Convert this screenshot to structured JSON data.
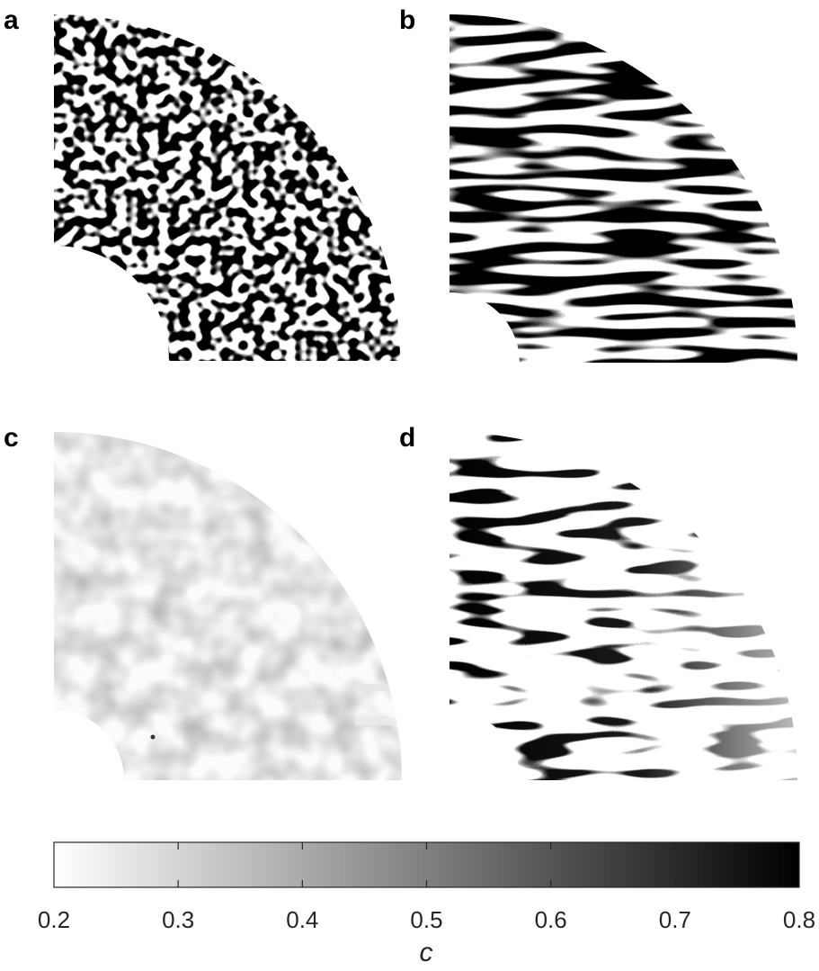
{
  "chart_data": {
    "type": "heatmap",
    "panels": [
      {
        "label": "a",
        "pattern": "fine isotropic labyrinth, stripes toward outer rim"
      },
      {
        "label": "b",
        "pattern": "elongated horizontal stripes"
      },
      {
        "label": "c",
        "pattern": "nearly uniform light field"
      },
      {
        "label": "d",
        "pattern": "thin horizontal stripes, fading toward right"
      }
    ],
    "colorbar": {
      "label": "c",
      "min": 0.2,
      "max": 0.8,
      "ticks": [
        0.2,
        0.3,
        0.4,
        0.5,
        0.6,
        0.7,
        0.8
      ],
      "tick_labels": [
        "0.2",
        "0.3",
        "0.4",
        "0.5",
        "0.6",
        "0.7",
        "0.8"
      ],
      "colormap": "gray",
      "low_color": "#ffffff",
      "high_color": "#000000"
    }
  }
}
